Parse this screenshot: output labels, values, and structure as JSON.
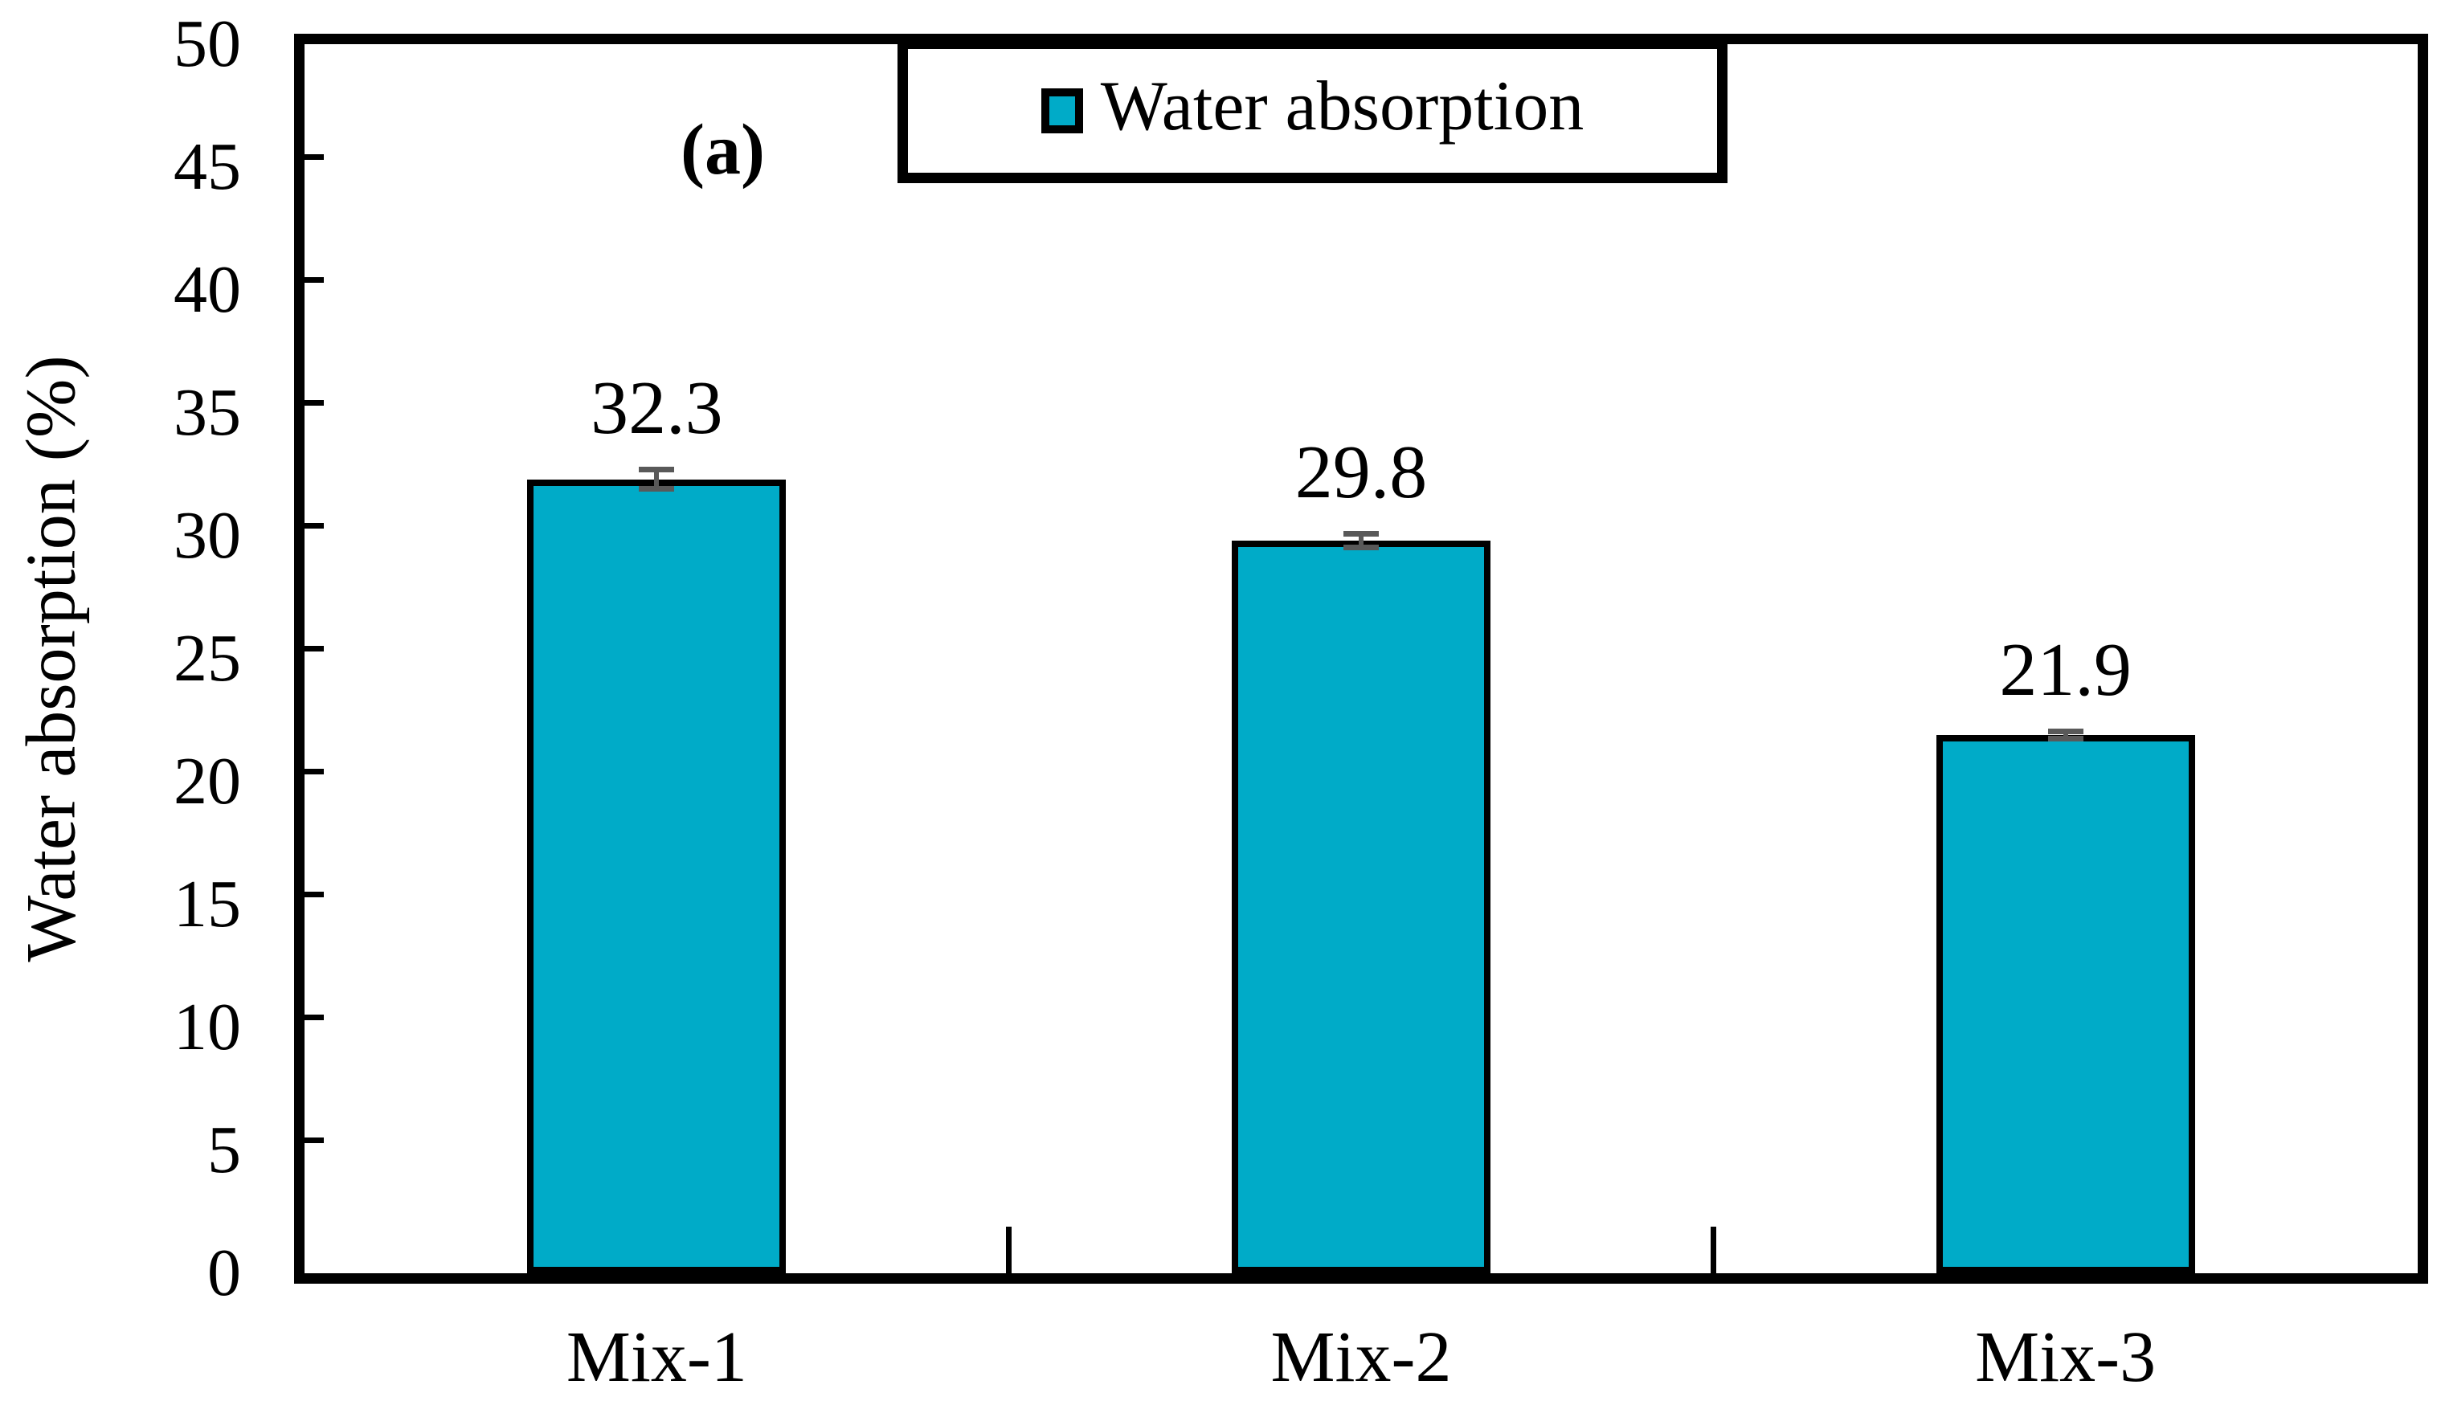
{
  "figure": {
    "panel_label": "(a)",
    "background_color": "#ffffff"
  },
  "chart_data": {
    "type": "bar",
    "title": "",
    "xlabel": "",
    "ylabel": "Water absorption (%)",
    "categories": [
      "Mix-1",
      "Mix-2",
      "Mix-3"
    ],
    "series": [
      {
        "name": "Water absorption",
        "values": [
          32.3,
          29.8,
          21.9
        ],
        "errors": [
          0.5,
          0.4,
          0.25
        ]
      }
    ],
    "data_labels": [
      "32.3",
      "29.8",
      "21.9"
    ],
    "ylim": [
      0,
      50
    ],
    "ytick_step": 5,
    "yticks": [
      0,
      5,
      10,
      15,
      20,
      25,
      30,
      35,
      40,
      45,
      50
    ],
    "grid": false,
    "legend": {
      "position": "top-center",
      "entries": [
        "Water absorption"
      ]
    },
    "colors": {
      "bar_fill": "#00ABC8",
      "bar_border": "#000000",
      "error_bar": "#595959",
      "axis": "#000000",
      "text": "#000000"
    }
  }
}
